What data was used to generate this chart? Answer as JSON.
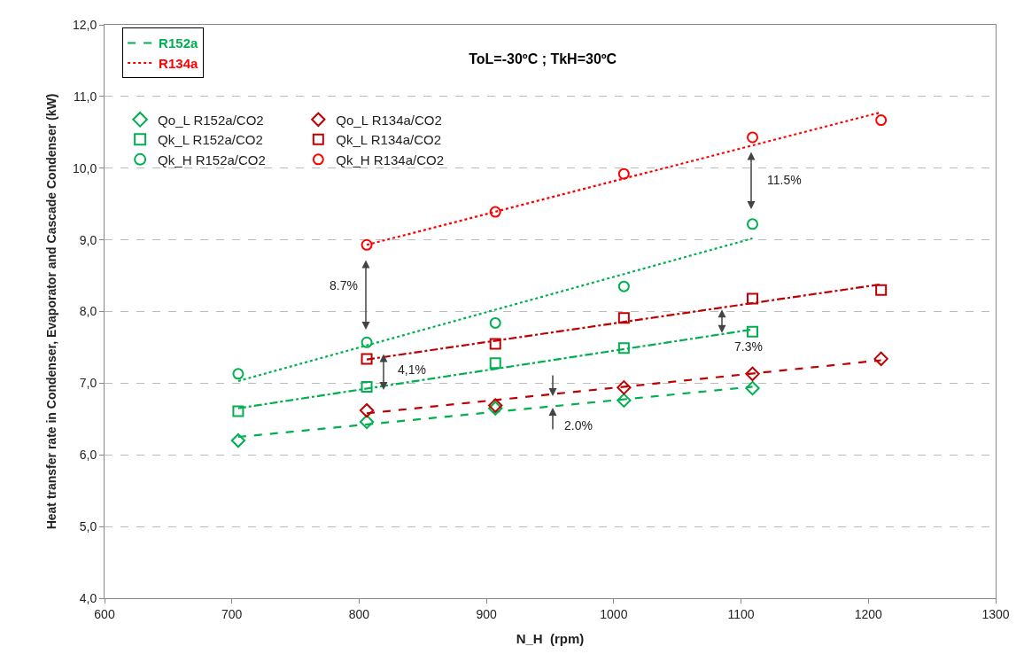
{
  "chart_data": {
    "type": "scatter",
    "title": "ToL=-30ºC ; TkH=30ºC",
    "xlabel": "N_H  (rpm)",
    "ylabel": "Heat transfer rate in Condenser, Evaporator and Cascade Condenser (kW)",
    "xlim": [
      600,
      1300
    ],
    "xticks": [
      600,
      700,
      800,
      900,
      1000,
      1100,
      1200,
      1300
    ],
    "ylim": [
      4,
      12
    ],
    "yticks": [
      {
        "value": 4,
        "label": "4,0"
      },
      {
        "value": 5,
        "label": "5,0"
      },
      {
        "value": 6,
        "label": "6,0"
      },
      {
        "value": 7,
        "label": "7,0"
      },
      {
        "value": 8,
        "label": "8,0"
      },
      {
        "value": 9,
        "label": "9,0"
      },
      {
        "value": 10,
        "label": "10,0"
      },
      {
        "value": 11,
        "label": "11,0"
      },
      {
        "value": 12,
        "label": "12,0"
      }
    ],
    "grid": "y",
    "legend": "top left",
    "series": [
      {
        "name": "Qo_L R152a/CO2",
        "color": "#00b050",
        "marker": "diamond",
        "x": [
          705,
          806,
          907,
          1008,
          1109
        ],
        "values": [
          6.2,
          6.46,
          6.65,
          6.76,
          6.93
        ]
      },
      {
        "name": "Qk_L R152a/CO2",
        "color": "#00b050",
        "marker": "square",
        "x": [
          705,
          806,
          907,
          1008,
          1109
        ],
        "values": [
          6.61,
          6.95,
          7.28,
          7.49,
          7.72
        ]
      },
      {
        "name": "Qk_H R152a/CO2",
        "color": "#00b050",
        "marker": "circle",
        "x": [
          705,
          806,
          907,
          1008,
          1109
        ],
        "values": [
          7.13,
          7.57,
          7.84,
          8.35,
          9.22
        ]
      },
      {
        "name": "Qo_L R134a/CO2",
        "color": "#c00000",
        "marker": "diamond",
        "x": [
          806,
          907,
          1008,
          1109,
          1210
        ],
        "values": [
          6.62,
          6.69,
          6.94,
          7.13,
          7.34
        ]
      },
      {
        "name": "Qk_L R134a/CO2",
        "color": "#c00000",
        "marker": "square",
        "x": [
          806,
          907,
          1008,
          1109,
          1210
        ],
        "values": [
          7.34,
          7.55,
          7.91,
          8.18,
          8.3
        ]
      },
      {
        "name": "Qk_H R134a/CO2",
        "color": "#ff0000",
        "marker": "circle",
        "x": [
          806,
          907,
          1008,
          1109,
          1210
        ],
        "values": [
          8.93,
          9.39,
          9.92,
          10.43,
          10.67
        ]
      },
      {
        "name": "R152a",
        "type": "line",
        "color": "#00b050",
        "line_style": "dashed",
        "x": [
          705,
          1109
        ],
        "values": [
          6.25,
          6.95
        ]
      },
      {
        "type": "line",
        "color": "#00b050",
        "line_style": "dashdot",
        "x": [
          705,
          1109
        ],
        "values": [
          6.65,
          7.75
        ]
      },
      {
        "type": "line",
        "color": "#00b050",
        "line_style": "dotted",
        "x": [
          705,
          1109
        ],
        "values": [
          7.03,
          9.02
        ]
      },
      {
        "name": "R134a",
        "type": "line",
        "color": "#ff0000",
        "line_style": "dotted",
        "x": [
          806,
          1210
        ],
        "values": [
          8.93,
          10.78
        ]
      },
      {
        "type": "line",
        "color": "#c00000",
        "line_style": "dashed",
        "x": [
          806,
          1210
        ],
        "values": [
          6.58,
          7.32
        ]
      },
      {
        "type": "line",
        "color": "#c00000",
        "line_style": "dashdot",
        "x": [
          806,
          1210
        ],
        "values": [
          7.33,
          8.38
        ]
      }
    ],
    "annotations": [
      "8.7%",
      "4,1%",
      "2.0%",
      {
        "text": "7.3%",
        "x": 1085,
        "y": 7.7
      },
      "11.5%"
    ]
  }
}
